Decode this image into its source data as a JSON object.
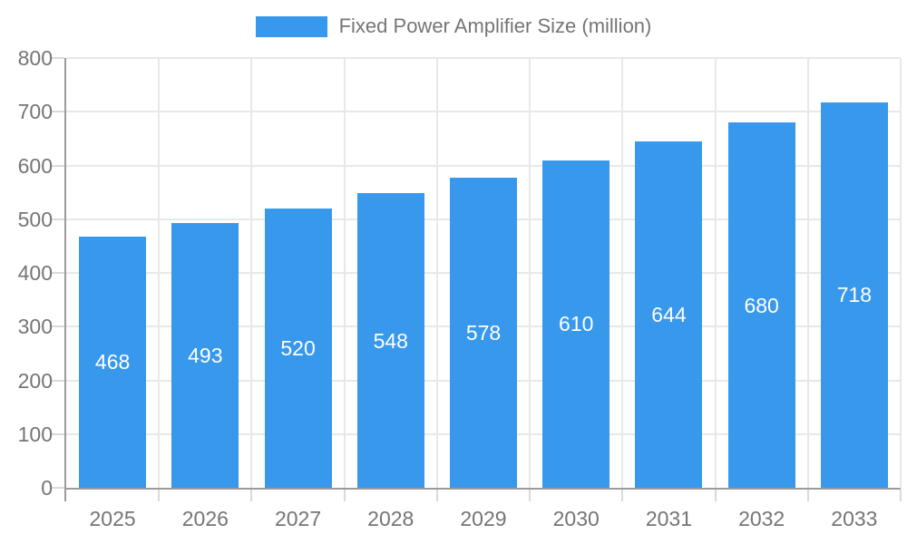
{
  "legend": {
    "label": "Fixed Power Amplifier Size (million)"
  },
  "chart_data": {
    "type": "bar",
    "title": "",
    "categories": [
      "2025",
      "2026",
      "2027",
      "2028",
      "2029",
      "2030",
      "2031",
      "2032",
      "2033"
    ],
    "values": [
      468,
      493,
      520,
      548,
      578,
      610,
      644,
      680,
      718
    ],
    "series_name": "Fixed Power Amplifier Size (million)",
    "xlabel": "",
    "ylabel": "",
    "ylim": [
      0,
      800
    ],
    "ytick_interval": 100,
    "yticks": [
      0,
      100,
      200,
      300,
      400,
      500,
      600,
      700,
      800
    ],
    "grid": true,
    "legend_position": "top-center",
    "value_labels": "inside-bars",
    "colors": {
      "bar": "#3898EC",
      "axis_line": "#9B9B9B",
      "gridline": "#E8E8E8",
      "tick": "#DADADA",
      "label_text": "#757575",
      "value_label": "#FFFFFF",
      "background": "#FFFFFF"
    }
  }
}
